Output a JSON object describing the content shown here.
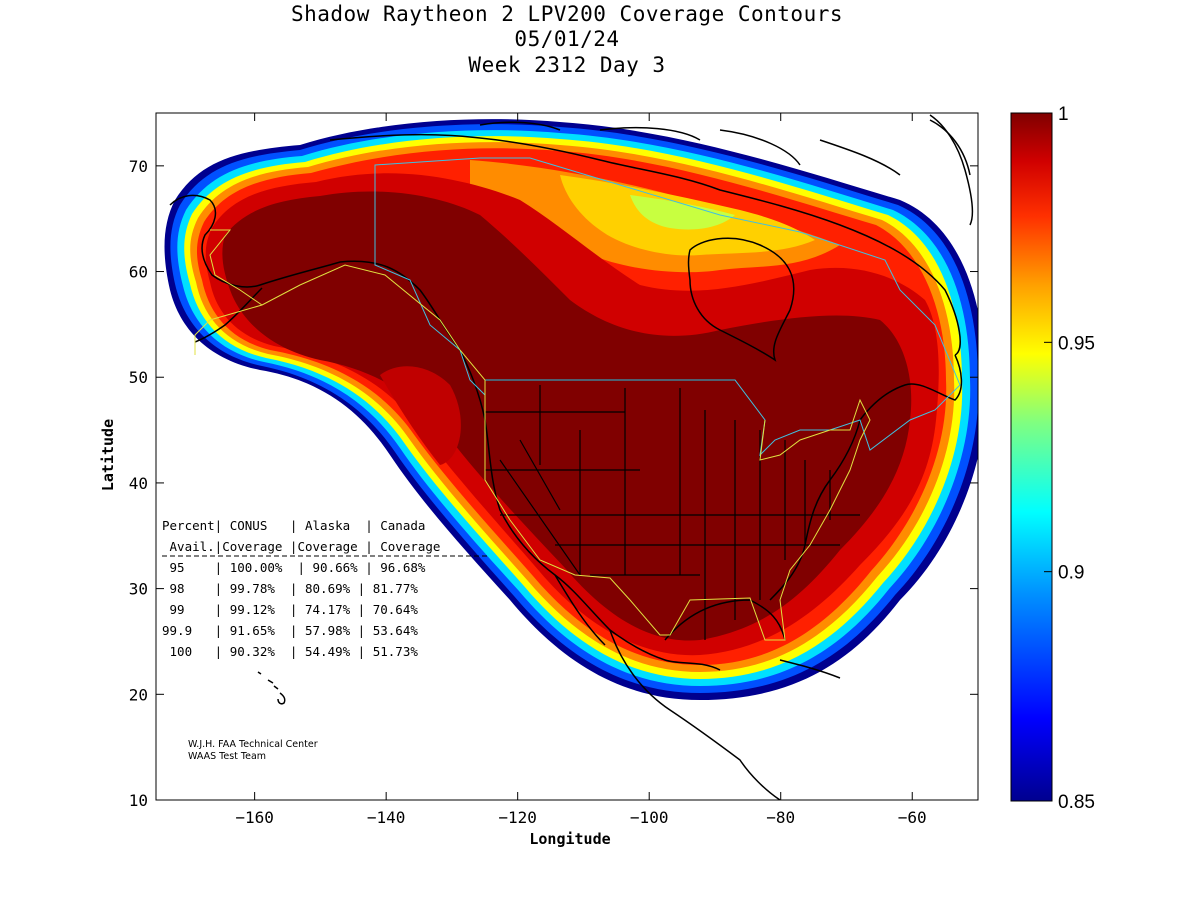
{
  "title": {
    "line1": "Shadow Raytheon 2 LPV200 Coverage Contours",
    "line2": "05/01/24",
    "line3": "Week 2312 Day 3"
  },
  "axes": {
    "xlabel": "Longitude",
    "ylabel": "Latitude",
    "xlim": [
      -175,
      -50
    ],
    "ylim": [
      10,
      75
    ],
    "xticks": [
      -160,
      -140,
      -120,
      -100,
      -80,
      -60
    ],
    "yticks": [
      10,
      20,
      30,
      40,
      50,
      60,
      70
    ]
  },
  "colorbar": {
    "range": [
      0.85,
      1
    ],
    "ticks": [
      {
        "value": 1,
        "label": "1"
      },
      {
        "value": 0.95,
        "label": "0.95"
      },
      {
        "value": 0.9,
        "label": "0.9"
      },
      {
        "value": 0.85,
        "label": "0.85"
      }
    ]
  },
  "coverage_table": {
    "header1": "Percent| CONUS   | Alaska  | Canada",
    "header2": " Avail.|Coverage |Coverage | Coverage",
    "rows": [
      " 95    | 100.00%  | 90.66% | 96.68%",
      " 98    | 99.78%  | 80.69% | 81.77%",
      " 99    | 99.12%  | 74.17% | 70.64%",
      "99.9   | 91.65%  | 57.98% | 53.64%",
      " 100   | 90.32%  | 54.49% | 51.73%"
    ]
  },
  "credit": {
    "line1": "W.J.H. FAA Technical Center",
    "line2": "WAAS Test Team"
  },
  "colors": {
    "dark_red": "#800000",
    "red": "#c00000",
    "bright_red": "#ff2000",
    "orange": "#ff8000",
    "yellow": "#ffff00",
    "cyan": "#00ffff",
    "blue": "#0040ff",
    "navy": "#000090",
    "boundary_cyan": "#40c0e0",
    "boundary_yellow": "#e0e040"
  },
  "chart_data": {
    "type": "heatmap",
    "description_values": "LPV200 availability contours over North America",
    "value_range": [
      0.85,
      1
    ],
    "regions_availability": {
      "CONUS core": 1,
      "southern Alaska / western Canada": 1,
      "northern Canada (Hudson Bay)": 0.95
    }
  }
}
